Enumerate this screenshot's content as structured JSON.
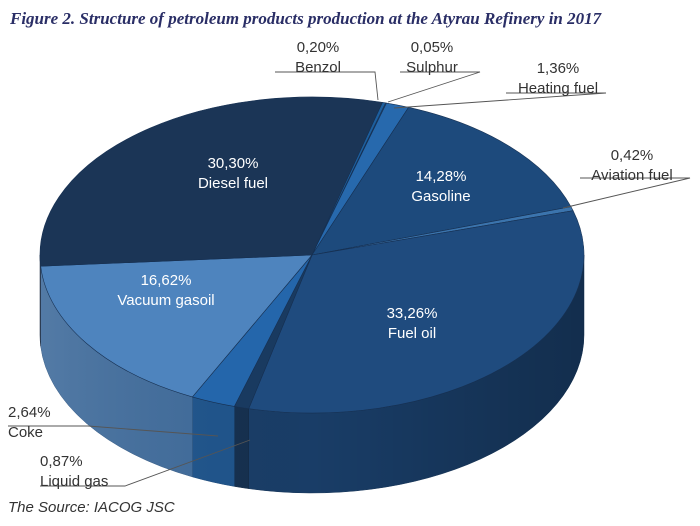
{
  "title": "Figure 2. Structure of petroleum products production at the Atyrau Refinery in 2017",
  "source": "The Source: IACOG JSC",
  "chart_data": {
    "type": "pie",
    "style": "3d-exploded-style",
    "slices": [
      {
        "label": "Benzol",
        "value_text": "0,20%",
        "value": 0.2,
        "color": "#1d5f9e"
      },
      {
        "label": "Sulphur",
        "value_text": "0,05%",
        "value": 0.05,
        "color": "#2a70b0"
      },
      {
        "label": "Heating fuel",
        "value_text": "1,36%",
        "value": 1.36,
        "color": "#2769ad"
      },
      {
        "label": "Gasoline",
        "value_text": "14,28%",
        "value": 14.28,
        "color": "#1d4a7c"
      },
      {
        "label": "Aviation fuel",
        "value_text": "0,42%",
        "value": 0.42,
        "color": "#3b74ad"
      },
      {
        "label": "Fuel oil",
        "value_text": "33,26%",
        "value": 33.26,
        "color": "#1f4b7e"
      },
      {
        "label": "Liquid gas",
        "value_text": "0,87%",
        "value": 0.87,
        "color": "#193a60"
      },
      {
        "label": "Coke",
        "value_text": "2,64%",
        "value": 2.64,
        "color": "#2466ab"
      },
      {
        "label": "Vacuum gasoil",
        "value_text": "16,62%",
        "value": 16.62,
        "color": "#4e84be"
      },
      {
        "label": "Diesel fuel",
        "value_text": "30,30%",
        "value": 30.3,
        "color": "#1b3556"
      }
    ]
  }
}
